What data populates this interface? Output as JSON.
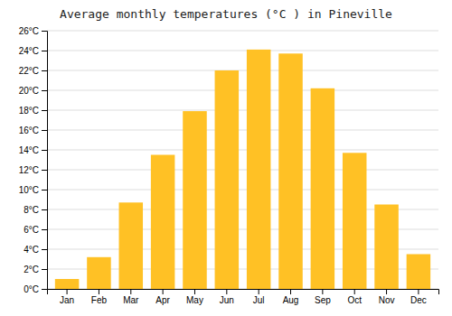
{
  "chart_data": {
    "type": "bar",
    "title": "Average monthly temperatures (°C ) in Pineville",
    "categories": [
      "Jan",
      "Feb",
      "Mar",
      "Apr",
      "May",
      "Jun",
      "Jul",
      "Aug",
      "Sep",
      "Oct",
      "Nov",
      "Dec"
    ],
    "values": [
      1.0,
      3.2,
      8.7,
      13.5,
      17.9,
      22.0,
      24.1,
      23.7,
      20.2,
      13.7,
      8.5,
      3.5
    ],
    "color": "#FFC125",
    "ylim": [
      0,
      26
    ],
    "yticks": [
      {
        "value": 0,
        "label": "0°C"
      },
      {
        "value": 2,
        "label": "2°C"
      },
      {
        "value": 4,
        "label": "4°C"
      },
      {
        "value": 6,
        "label": "6°C"
      },
      {
        "value": 8,
        "label": "8°C"
      },
      {
        "value": 10,
        "label": "10°C"
      },
      {
        "value": 12,
        "label": "12°C"
      },
      {
        "value": 14,
        "label": "14°C"
      },
      {
        "value": 16,
        "label": "16°C"
      },
      {
        "value": 18,
        "label": "18°C"
      },
      {
        "value": 20,
        "label": "20°C"
      },
      {
        "value": 22,
        "label": "22°C"
      },
      {
        "value": 24,
        "label": "24°C"
      },
      {
        "value": 26,
        "label": "26°C"
      }
    ],
    "grid": true
  }
}
